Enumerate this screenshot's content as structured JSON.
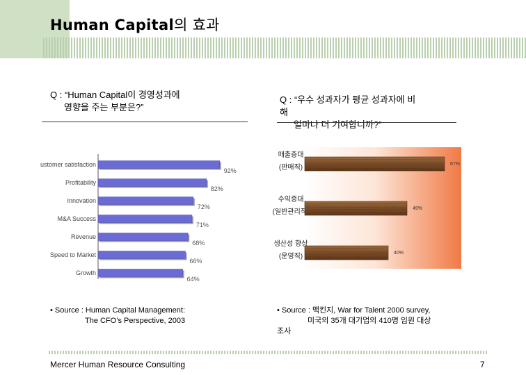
{
  "slide": {
    "title_en": "Human Capital",
    "title_kr": "의 효과",
    "footer": "Mercer Human Resource Consulting",
    "page_number": "7"
  },
  "left_panel": {
    "question_line1": "Q : “Human Capital이 경영성과에",
    "question_line2": "영향을 주는 부분은?”",
    "source_line1": "• Source : Human Capital Management:",
    "source_line2": "The CFO’s Perspective, 2003"
  },
  "right_panel": {
    "question_line1": "Q : “우수 성과자가 평균 성과자에 비",
    "question_line2": "해",
    "question_line3": "얼마나 더 기여합니까?”",
    "source_line1": "• Source : 맥킨지, War for Talent 2000 survey,",
    "source_line2": "미국의 35개 대기업의 410명 임원 대상",
    "source_line3": "조사"
  },
  "chart_data": [
    {
      "type": "bar",
      "orientation": "horizontal",
      "categories": [
        "Customer satisfaction",
        "Profitability",
        "Innovation",
        "M&A Success",
        "Revenue",
        "Speed to Market",
        "Growth"
      ],
      "values": [
        92,
        82,
        72,
        71,
        68,
        66,
        64
      ],
      "value_labels": [
        "92%",
        "82%",
        "72%",
        "71%",
        "68%",
        "66%",
        "64%"
      ],
      "xlim": [
        0,
        100
      ],
      "bar_color": "#6b6bd6"
    },
    {
      "type": "bar",
      "orientation": "horizontal",
      "categories": [
        {
          "line1": "매출증대",
          "line2": "(판매직)"
        },
        {
          "line1": "수익증대",
          "line2": "(일반관리직)"
        },
        {
          "line1": "생산성 향상",
          "line2": "(운영직)"
        }
      ],
      "values": [
        67,
        49,
        40
      ],
      "value_labels": [
        "67%",
        "49%",
        "40%"
      ],
      "xlim": [
        0,
        75
      ],
      "bar_color": "#8a5a30"
    }
  ]
}
